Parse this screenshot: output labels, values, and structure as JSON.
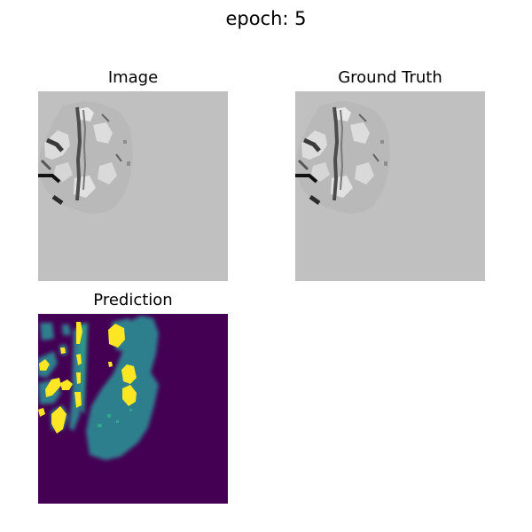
{
  "figure": {
    "title": "epoch: 5"
  },
  "panels": {
    "image": {
      "title": "Image"
    },
    "ground_truth": {
      "title": "Ground Truth"
    },
    "prediction": {
      "title": "Prediction"
    }
  },
  "colors": {
    "background_gray": "#c0c0c0",
    "tissue_light": "#dedede",
    "tissue_mid": "#9a9a9a",
    "tissue_dark": "#353535",
    "pred_background": "#440154",
    "pred_mid": "#2f7f8e",
    "pred_high": "#fde725",
    "pred_teal": "#2a9b8a"
  }
}
